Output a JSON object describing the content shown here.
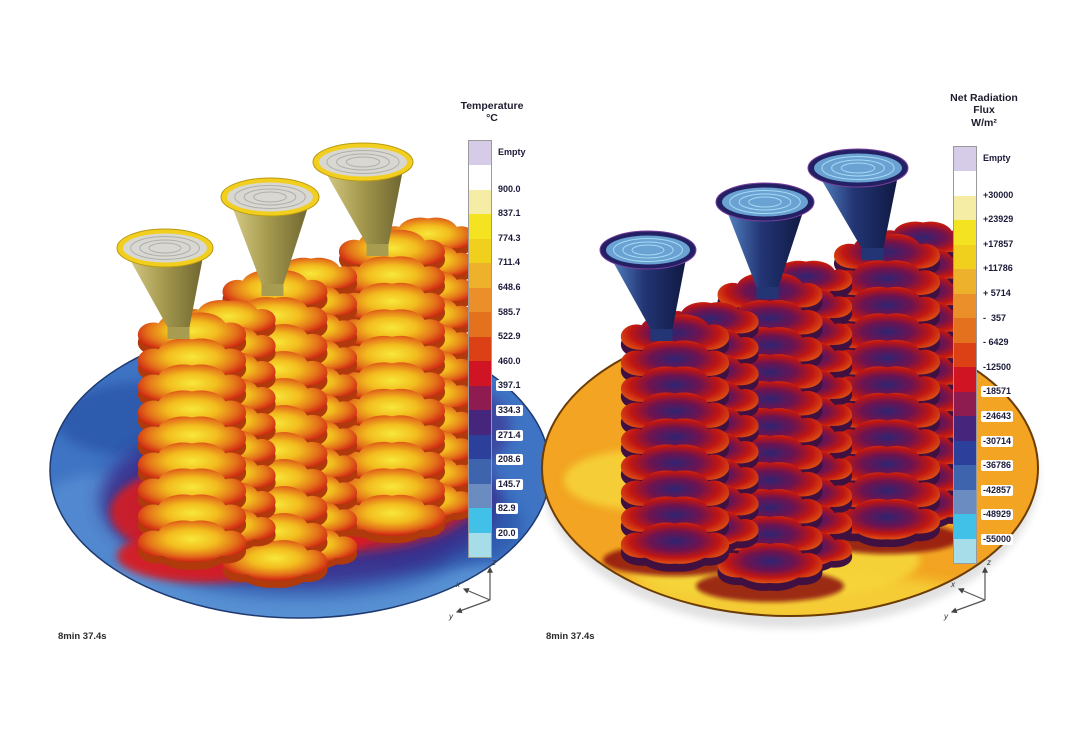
{
  "views": [
    {
      "id": "temperature",
      "timestamp": "8min 37.4s",
      "legend": {
        "title_lines": [
          "Temperature",
          "°C"
        ],
        "empty_label": "Empty",
        "tick_labels": [
          "900.0",
          "837.1",
          "774.3",
          "711.4",
          "648.6",
          "585.7",
          "522.9",
          "460.0",
          "397.1",
          "334.3",
          "271.4",
          "208.6",
          "145.7",
          "82.9",
          "20.0"
        ],
        "band_colors": [
          "#d7cce8",
          "#ffffff",
          "#f5eda6",
          "#f3e320",
          "#f0cf1d",
          "#eeb12b",
          "#ea8f2a",
          "#e4711e",
          "#dc4015",
          "#d01423",
          "#8f1c50",
          "#45267c",
          "#2c3f9b",
          "#3f64ae",
          "#6b8cc0",
          "#41c0e8",
          "#a6dde8"
        ]
      },
      "scene_palette": {
        "plate_base": "#3f74c4",
        "plate_dark": "#2b55a8",
        "plate_light": "#5f97d8",
        "plate_edge": "#1d3a70",
        "glow_purple": "#3a2a88",
        "glow_red": "#d81c22",
        "glow_orange": "#f09c1a",
        "glow_yellow": "#f4d83a",
        "disc_gradient": [
          "#f8e83a",
          "#f2bc1e",
          "#e4731a",
          "#d02513",
          "#a01210"
        ],
        "disc_bottom": "#b03a0c",
        "shaft": "#d4d4ce",
        "cup_cone": [
          "#d8cd8a",
          "#a89c50",
          "#6e6530"
        ],
        "cup_rim": "#f2cf1e",
        "cup_rim_edge": "#b99a10",
        "cup_inner": "#d8d7d2",
        "cup_ring": "#b0afa8"
      }
    },
    {
      "id": "net-radiation-flux",
      "timestamp": "8min 37.4s",
      "legend": {
        "title_lines": [
          "Net Radiation",
          "Flux",
          "W/m²"
        ],
        "empty_label": "Empty",
        "tick_labels": [
          "+30000",
          "+23929",
          "+17857",
          "+11786",
          "+ 5714",
          "-  357",
          "- 6429",
          "-12500",
          "-18571",
          "-24643",
          "-30714",
          "-36786",
          "-42857",
          "-48929",
          "-55000"
        ],
        "band_colors": [
          "#d7cce8",
          "#ffffff",
          "#f5eda6",
          "#f3e320",
          "#f0cf1d",
          "#eeb12b",
          "#ea8f2a",
          "#e4711e",
          "#dc4015",
          "#d01423",
          "#8f1c50",
          "#45267c",
          "#2c3f9b",
          "#3f64ae",
          "#6b8cc0",
          "#41c0e8",
          "#a6dde8"
        ]
      },
      "scene_palette": {
        "plate_base": "#f2a422",
        "plate_dark": "#e08e14",
        "plate_light": "#f6d63a",
        "plate_edge": "#6b3c06",
        "tree_shadow": "#8c1110",
        "disc_gradient": [
          "#2f2472",
          "#6e1350",
          "#c01612",
          "#de4f12",
          "#8c0f0e"
        ],
        "disc_bottom": "#401040",
        "shaft": "#2a3a84",
        "cup_cone": [
          "#5585c4",
          "#233575",
          "#0f1840"
        ],
        "cup_rim": "#232064",
        "cup_rim_edge": "#7a3f9e",
        "cup_inner": "#6aa2d4",
        "cup_ring": "#a6daf0"
      }
    }
  ],
  "axis_triad": {
    "x": "x",
    "y": "y",
    "z": "z"
  },
  "chart_data": [
    {
      "type": "heatmap",
      "title": "Temperature",
      "units": "°C",
      "legend_position": "right",
      "legend_entries": [
        "Empty",
        "900.0",
        "837.1",
        "774.3",
        "711.4",
        "648.6",
        "585.7",
        "522.9",
        "460.0",
        "397.1",
        "334.3",
        "271.4",
        "208.6",
        "145.7",
        "82.9",
        "20.0"
      ],
      "scale_min": 20.0,
      "scale_max": 900.0,
      "time": "8min 37.4s",
      "subject": "Three investment-casting cluster trees with pour cups on circular plate; parts glow yellow-orange-red (hot), plate cool blue"
    },
    {
      "type": "heatmap",
      "title": "Net Radiation Flux",
      "units": "W/m²",
      "legend_position": "right",
      "legend_entries": [
        "Empty",
        "+30000",
        "+23929",
        "+17857",
        "+11786",
        "+ 5714",
        "-  357",
        "- 6429",
        "-12500",
        "-18571",
        "-24643",
        "-30714",
        "-36786",
        "-42857",
        "-48929",
        "-55000"
      ],
      "scale_min": -55000,
      "scale_max": 30000,
      "time": "8min 37.4s",
      "subject": "Same casting trees; parts radiate (red/dark blue negative flux), plate receives radiation (orange/yellow positive flux)"
    }
  ]
}
